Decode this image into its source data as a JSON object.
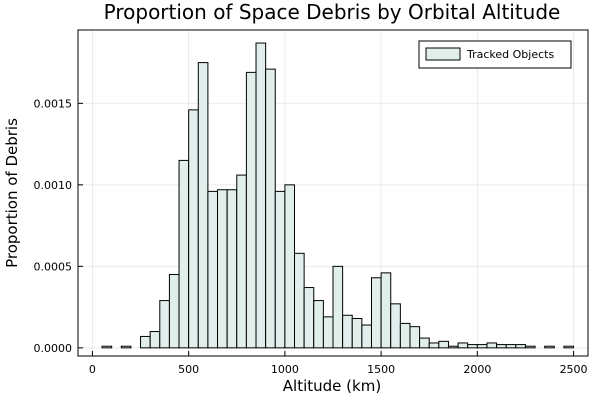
{
  "chart_data": {
    "type": "bar",
    "title": "Proportion of Space Debris by Orbital Altitude",
    "xlabel": "Altitude (km)",
    "ylabel": "Proportion of Debris",
    "xlim": [
      -75,
      2575
    ],
    "ylim": [
      -5e-05,
      0.00195
    ],
    "xticks": [
      0,
      500,
      1000,
      1500,
      2000,
      2500
    ],
    "xtick_labels": [
      "0",
      "500",
      "1000",
      "1500",
      "2000",
      "2500"
    ],
    "yticks": [
      0,
      0.0005,
      0.001,
      0.0015
    ],
    "ytick_labels": [
      "0.0000",
      "0.0005",
      "0.0010",
      "0.0015"
    ],
    "grid": true,
    "legend_position": "top-right",
    "bin_width": 50,
    "series": [
      {
        "name": "Tracked Objects",
        "color": "#e0efec",
        "edge_color": "#000000",
        "bin_starts": [
          0,
          50,
          100,
          150,
          200,
          250,
          300,
          350,
          400,
          450,
          500,
          550,
          600,
          650,
          700,
          750,
          800,
          850,
          900,
          950,
          1000,
          1050,
          1100,
          1150,
          1200,
          1250,
          1300,
          1350,
          1400,
          1450,
          1500,
          1550,
          1600,
          1650,
          1700,
          1750,
          1800,
          1850,
          1900,
          1950,
          2000,
          2050,
          2100,
          2150,
          2200,
          2250,
          2300,
          2350,
          2400,
          2450
        ],
        "values": [
          0.0,
          1e-05,
          0.0,
          1e-05,
          0.0,
          7e-05,
          0.0001,
          0.00029,
          0.00045,
          0.00115,
          0.00146,
          0.00175,
          0.00096,
          0.00097,
          0.00097,
          0.00106,
          0.00169,
          0.00187,
          0.00171,
          0.00096,
          0.001,
          0.00058,
          0.00037,
          0.00029,
          0.00019,
          0.0005,
          0.0002,
          0.00018,
          0.00014,
          0.00043,
          0.00046,
          0.00027,
          0.00015,
          0.00013,
          6e-05,
          3e-05,
          4e-05,
          1e-05,
          3e-05,
          2e-05,
          2e-05,
          3e-05,
          2e-05,
          2e-05,
          2e-05,
          1e-05,
          0.0,
          1e-05,
          0.0,
          1e-05
        ]
      }
    ]
  }
}
